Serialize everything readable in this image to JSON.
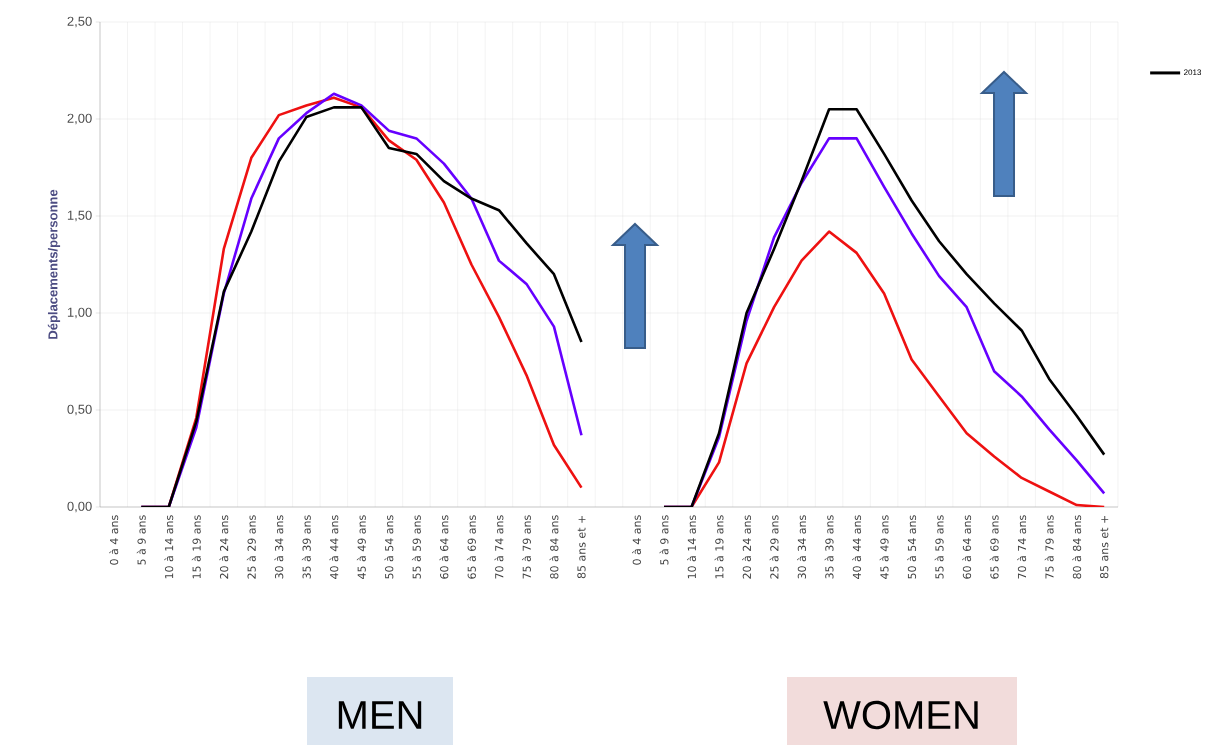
{
  "chart_data": {
    "type": "line",
    "ylabel": "Déplacements/personne",
    "categories": [
      "0 à 4 ans",
      "5 à 9 ans",
      "10 à 14 ans",
      "15 à 19 ans",
      "20 à 24 ans",
      "25 à 29 ans",
      "30 à 34 ans",
      "35 à 39 ans",
      "40 à 44 ans",
      "45 à 49 ans",
      "50 à 54 ans",
      "55 à 59 ans",
      "60 à 64 ans",
      "65 à 69 ans",
      "70 à 74 ans",
      "75 à 79 ans",
      "80 à 84 ans",
      "85 ans et +",
      null,
      "0 à 4 ans",
      "5 à 9 ans",
      "10 à 14 ans",
      "15 à 19 ans",
      "20 à 24 ans",
      "25 à 29 ans",
      "30 à 34 ans",
      "35 à 39 ans",
      "40 à 44 ans",
      "45 à 49 ans",
      "50 à 54 ans",
      "55 à 59 ans",
      "60 à 64 ans",
      "65 à 69 ans",
      "70 à 74 ans",
      "75 à 79 ans",
      "80 à 84 ans",
      "85 ans et +"
    ],
    "series": [
      {
        "color": "#ee1111",
        "values": [
          null,
          0,
          0,
          0.46,
          1.33,
          1.8,
          2.02,
          2.07,
          2.11,
          2.06,
          1.89,
          1.79,
          1.57,
          1.25,
          0.98,
          0.68,
          0.32,
          0.1,
          null,
          null,
          0,
          0,
          0.23,
          0.74,
          1.03,
          1.27,
          1.42,
          1.31,
          1.1,
          0.76,
          0.57,
          0.38,
          0.26,
          0.15,
          0.08,
          0.01,
          0.0
        ]
      },
      {
        "color": "#6600ff",
        "values": [
          null,
          0,
          0,
          0.41,
          1.1,
          1.59,
          1.9,
          2.03,
          2.13,
          2.07,
          1.94,
          1.9,
          1.77,
          1.59,
          1.27,
          1.15,
          0.93,
          0.37,
          null,
          null,
          0,
          0,
          0.36,
          0.96,
          1.39,
          1.67,
          1.9,
          1.9,
          1.65,
          1.41,
          1.19,
          1.03,
          0.7,
          0.57,
          0.4,
          0.24,
          0.07
        ]
      },
      {
        "name": "2013",
        "color": "#000000",
        "values": [
          null,
          0,
          0,
          0.44,
          1.11,
          1.42,
          1.78,
          2.01,
          2.06,
          2.06,
          1.85,
          1.82,
          1.68,
          1.59,
          1.53,
          1.36,
          1.2,
          0.85,
          null,
          null,
          0,
          0,
          0.38,
          1.0,
          1.33,
          1.68,
          2.05,
          2.05,
          1.82,
          1.58,
          1.37,
          1.2,
          1.05,
          0.91,
          0.66,
          0.47,
          0.27
        ]
      }
    ],
    "ylim": [
      0,
      2.5
    ],
    "yticks": [
      {
        "value": 0,
        "label": "0,00"
      },
      {
        "value": 0.5,
        "label": "0,50"
      },
      {
        "value": 1,
        "label": "1,00"
      },
      {
        "value": 1.5,
        "label": "1,50"
      },
      {
        "value": 2,
        "label": "2,00"
      },
      {
        "value": 2.5,
        "label": "2,50"
      }
    ],
    "grid": true,
    "legend": "top right",
    "annotations": [
      "MEN",
      "WOMEN"
    ]
  }
}
